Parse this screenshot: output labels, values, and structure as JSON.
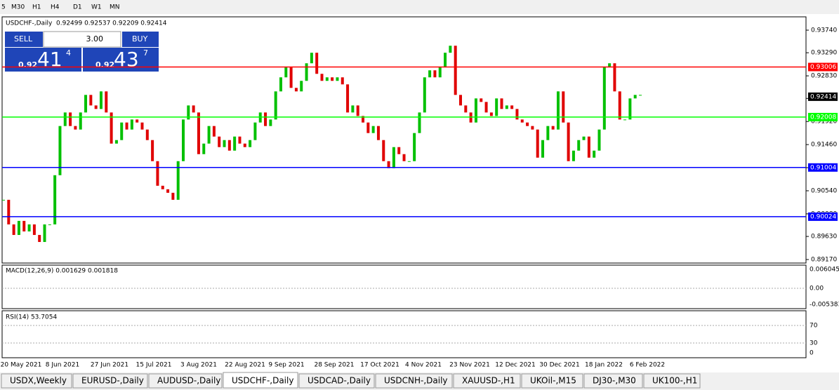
{
  "toolbar": [
    "5",
    "M30",
    "H1",
    "H4",
    "D1",
    "W1",
    "MN"
  ],
  "header": {
    "symbol": "USDCHF-,Daily",
    "ohlc": "0.92499 0.92537 0.92209 0.92414"
  },
  "trade_panel": {
    "sell": "SELL",
    "buy": "BUY",
    "lots": "3.00",
    "sell_price": {
      "big": "0.92",
      "main": "41",
      "small": "4"
    },
    "buy_price": {
      "big": "0.92",
      "main": "43",
      "small": "7"
    }
  },
  "chart_data": {
    "type": "candlestick",
    "closes": [
      0.9036,
      0.8987,
      0.8966,
      0.8994,
      0.8973,
      0.8987,
      0.8966,
      0.8952,
      0.8987,
      0.8987,
      0.9085,
      0.9183,
      0.921,
      0.9183,
      0.9176,
      0.921,
      0.9245,
      0.9224,
      0.9217,
      0.9252,
      0.921,
      0.9148,
      0.9155,
      0.919,
      0.9176,
      0.9196,
      0.919,
      0.9176,
      0.9155,
      0.9113,
      0.9064,
      0.9057,
      0.905,
      0.9036,
      0.9113,
      0.9196,
      0.9224,
      0.921,
      0.9127,
      0.9148,
      0.9183,
      0.9162,
      0.9141,
      0.9155,
      0.9134,
      0.9162,
      0.9148,
      0.9141,
      0.9155,
      0.919,
      0.921,
      0.9183,
      0.9196,
      0.9252,
      0.928,
      0.9301,
      0.9259,
      0.9252,
      0.9273,
      0.9308,
      0.9329,
      0.9287,
      0.9273,
      0.928,
      0.9273,
      0.928,
      0.9266,
      0.921,
      0.9224,
      0.9203,
      0.919,
      0.9169,
      0.9183,
      0.9155,
      0.9113,
      0.9099,
      0.9141,
      0.9127,
      0.9113,
      0.9113,
      0.9169,
      0.921,
      0.928,
      0.9294,
      0.928,
      0.9301,
      0.9329,
      0.9343,
      0.9245,
      0.9224,
      0.921,
      0.919,
      0.9238,
      0.9231,
      0.921,
      0.9203,
      0.9238,
      0.9217,
      0.9224,
      0.9217,
      0.9196,
      0.919,
      0.9183,
      0.9176,
      0.912,
      0.9155,
      0.9183,
      0.9176,
      0.9252,
      0.919,
      0.9113,
      0.9134,
      0.9155,
      0.9162,
      0.912,
      0.9134,
      0.9176,
      0.9301,
      0.9308,
      0.9252,
      0.9196,
      0.9196,
      0.9238,
      0.9245,
      0.9245
    ],
    "up_color": "#00c000",
    "down_color": "#e00000",
    "ylim": [
      0.8917,
      0.9374
    ],
    "yticks": [
      {
        "value": 0.9374,
        "label": "0.93740"
      },
      {
        "value": 0.9329,
        "label": "0.93290"
      },
      {
        "value": 0.9283,
        "label": "0.92830"
      },
      {
        "value": 0.9238,
        "label": "0.92380"
      },
      {
        "value": 0.9192,
        "label": "0.91920"
      },
      {
        "value": 0.9146,
        "label": "0.91460"
      },
      {
        "value": 0.91,
        "label": "0.91000"
      },
      {
        "value": 0.9054,
        "label": "0.90540"
      },
      {
        "value": 0.9008,
        "label": "0.90080"
      },
      {
        "value": 0.8963,
        "label": "0.89630"
      },
      {
        "value": 0.8917,
        "label": "0.89170"
      }
    ],
    "levels": [
      {
        "value": 0.93006,
        "label": "0.93006",
        "color": "#ff0000"
      },
      {
        "value": 0.92008,
        "label": "0.92008",
        "color": "#00ff00"
      },
      {
        "value": 0.91004,
        "label": "0.91004",
        "color": "#0000ff"
      },
      {
        "value": 0.90024,
        "label": "0.90024",
        "color": "#0000ff"
      }
    ],
    "current": {
      "value": 0.92414,
      "label": "0.92414"
    },
    "dates": [
      "20 May 2021",
      "8 Jun 2021",
      "27 Jun 2021",
      "15 Jul 2021",
      "3 Aug 2021",
      "22 Aug 2021",
      "9 Sep 2021",
      "28 Sep 2021",
      "17 Oct 2021",
      "4 Nov 2021",
      "23 Nov 2021",
      "12 Dec 2021",
      "30 Dec 2021",
      "18 Jan 2022",
      "6 Feb 2022"
    ]
  },
  "macd": {
    "label": "MACD(12,26,9) 0.001629 0.001818",
    "ticks": [
      "0.006045",
      "0.00",
      "-0.005383"
    ]
  },
  "rsi": {
    "label": "RSI(14) 53.7054",
    "ticks": [
      "70",
      "30",
      "0"
    ]
  },
  "tabs": [
    "USDX,Weekly",
    "EURUSD-,Daily",
    "AUDUSD-,Daily",
    "USDCHF-,Daily",
    "USDCAD-,Daily",
    "USDCNH-,Daily",
    "XAUUSD-,H1",
    "UKOil-,M15",
    "DJ30-,M30",
    "UK100-,H1"
  ]
}
